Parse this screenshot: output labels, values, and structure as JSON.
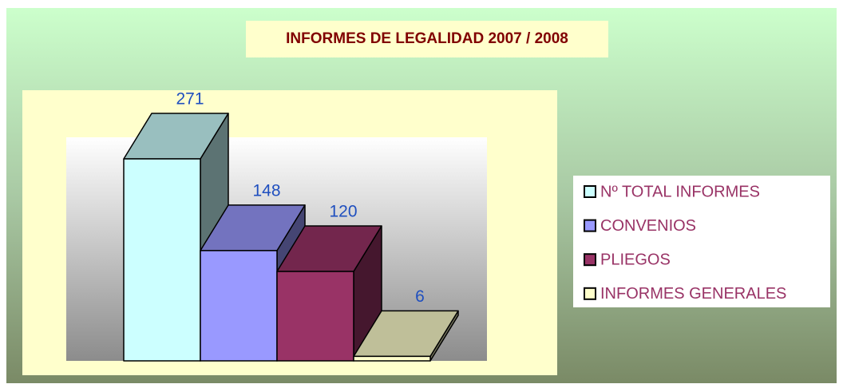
{
  "chart_data": {
    "type": "bar3d",
    "title": "INFORMES DE LEGALIDAD 2007 / 2008",
    "series": [
      {
        "name": "Nº TOTAL INFORMES",
        "color": "#ccffff",
        "values": [
          271
        ]
      },
      {
        "name": "CONVENIOS",
        "color": "#9999ff",
        "values": [
          148
        ]
      },
      {
        "name": "PLIEGOS",
        "color": "#993366",
        "values": [
          120
        ]
      },
      {
        "name": "INFORMES GENERALES",
        "color": "#ffffcc",
        "values": [
          6
        ]
      }
    ],
    "legend": "right"
  }
}
